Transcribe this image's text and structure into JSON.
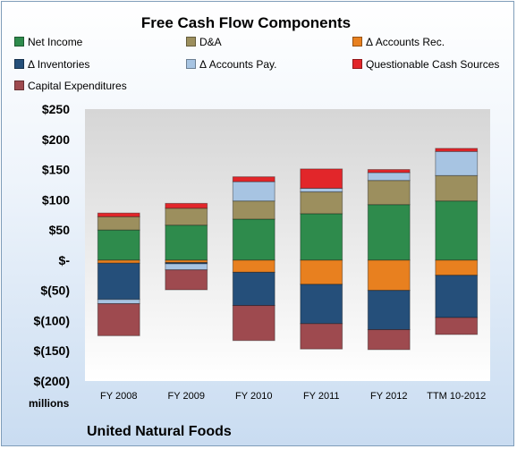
{
  "chart_data": {
    "type": "bar",
    "stacked": true,
    "title": "Free Cash Flow Components",
    "categories": [
      "FY 2008",
      "FY 2009",
      "FY 2010",
      "FY 2011",
      "FY 2012",
      "TTM 10-2012"
    ],
    "y_tick_labels": [
      "$250",
      "$200",
      "$150",
      "$100",
      "$50",
      "$-",
      "$(50)",
      "$(100)",
      "$(150)",
      "$(200)"
    ],
    "ylim": [
      -200,
      250
    ],
    "units_label": "millions",
    "company": "United Natural Foods",
    "legend_placement": "top",
    "grid": false,
    "series": [
      {
        "name": "Net Income",
        "color": "#2e8b4c",
        "values": [
          50,
          58,
          68,
          77,
          92,
          98
        ]
      },
      {
        "name": "D&A",
        "color": "#9c8f5e",
        "values": [
          22,
          28,
          30,
          36,
          40,
          42
        ]
      },
      {
        "name": "Δ Accounts Rec.",
        "color": "#e8801f",
        "values": [
          -5,
          -4,
          -20,
          -40,
          -50,
          -25
        ]
      },
      {
        "name": "Δ Inventories",
        "color": "#254f7a",
        "values": [
          -60,
          -2,
          -55,
          -65,
          -65,
          -70
        ]
      },
      {
        "name": "Δ Accounts Pay.",
        "color": "#a7c4e2",
        "values": [
          -7,
          -10,
          32,
          6,
          13,
          40
        ]
      },
      {
        "name": "Questionable Cash Sources",
        "color": "#e2262a",
        "values": [
          6,
          8,
          8,
          32,
          5,
          5
        ]
      },
      {
        "name": "Capital Expenditures",
        "color": "#9e4a4f",
        "values": [
          -53,
          -33,
          -58,
          -42,
          -33,
          -28
        ]
      }
    ]
  }
}
